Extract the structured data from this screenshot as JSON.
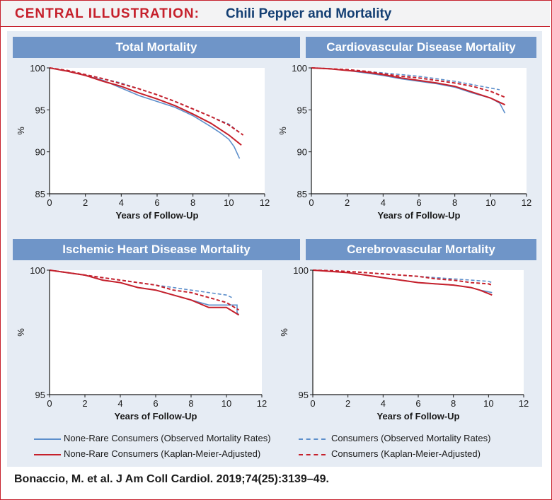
{
  "header": {
    "label": "CENTRAL ILLUSTRATION:",
    "title": "Chili Pepper and Mortality"
  },
  "citation": "Bonaccio, M. et al. J Am Coll Cardiol. 2019;74(25):3139–49.",
  "colors": {
    "red": "#c6202b",
    "blue": "#5d8fcb",
    "title_bar": "#6f95c8",
    "navy": "#143f73"
  },
  "legend": {
    "items": [
      {
        "label": "None-Rare Consumers (Observed Mortality Rates)",
        "color": "#5d8fcb",
        "dash": false
      },
      {
        "label": "Consumers (Observed Mortality Rates)",
        "color": "#5d8fcb",
        "dash": true
      },
      {
        "label": "None-Rare Consumers (Kaplan-Meier-Adjusted)",
        "color": "#c6202b",
        "dash": false
      },
      {
        "label": "Consumers (Kaplan-Meier-Adjusted)",
        "color": "#c6202b",
        "dash": true
      }
    ]
  },
  "chart_data": [
    {
      "type": "line",
      "title": "Total Mortality",
      "xlabel": "Years of Follow-Up",
      "ylabel": "%",
      "xlim": [
        0,
        12
      ],
      "ylim": [
        85,
        100
      ],
      "xticks": [
        0,
        2,
        4,
        6,
        8,
        10,
        12
      ],
      "yticks": [
        85,
        90,
        95,
        100
      ],
      "series": [
        {
          "name": "None-Rare Consumers (Observed Mortality Rates)",
          "x": [
            0,
            1,
            2,
            3,
            4,
            5,
            6,
            7,
            8,
            9,
            9.5,
            10,
            10.3,
            10.6
          ],
          "y": [
            100,
            99.6,
            99.1,
            98.5,
            97.6,
            96.7,
            96,
            95.3,
            94.3,
            93.0,
            92.3,
            91.5,
            90.6,
            89.2
          ]
        },
        {
          "name": "None-Rare Consumers (Kaplan-Meier-Adjusted)",
          "x": [
            0,
            1,
            2,
            3,
            4,
            5,
            6,
            7,
            8,
            9,
            10,
            10.7
          ],
          "y": [
            100,
            99.6,
            99.1,
            98.4,
            97.8,
            97.0,
            96.3,
            95.5,
            94.5,
            93.4,
            92.0,
            90.8
          ]
        },
        {
          "name": "Consumers (Observed Mortality Rates)",
          "x": [
            0,
            1,
            2,
            3,
            4,
            5,
            6,
            7,
            8,
            9,
            10,
            10.6
          ],
          "y": [
            100,
            99.7,
            99.2,
            98.7,
            98.2,
            97.5,
            96.8,
            96.0,
            95.1,
            94.2,
            93.3,
            92.3
          ]
        },
        {
          "name": "Consumers (Kaplan-Meier-Adjusted)",
          "x": [
            0,
            1,
            2,
            3,
            4,
            5,
            6,
            7,
            8,
            9,
            10,
            10.8
          ],
          "y": [
            100,
            99.7,
            99.2,
            98.7,
            98.1,
            97.5,
            96.8,
            96.0,
            95.1,
            94.2,
            93.2,
            92.0
          ]
        }
      ]
    },
    {
      "type": "line",
      "title": "Cardiovascular Disease Mortality",
      "xlabel": "Years of Follow-Up",
      "ylabel": "%",
      "xlim": [
        0,
        12
      ],
      "ylim": [
        85,
        100
      ],
      "xticks": [
        0,
        2,
        4,
        6,
        8,
        10,
        12
      ],
      "yticks": [
        85,
        90,
        95,
        100
      ],
      "series": [
        {
          "name": "None-Rare Consumers (Observed Mortality Rates)",
          "x": [
            0,
            1,
            2,
            3,
            4,
            5,
            6,
            7,
            8,
            9,
            10,
            10.5,
            10.8
          ],
          "y": [
            100,
            99.9,
            99.7,
            99.4,
            99.1,
            98.7,
            98.4,
            98.1,
            97.7,
            97.0,
            96.4,
            95.8,
            94.6
          ]
        },
        {
          "name": "None-Rare Consumers (Kaplan-Meier-Adjusted)",
          "x": [
            0,
            1,
            2,
            3,
            4,
            5,
            6,
            7,
            8,
            9,
            10,
            10.8
          ],
          "y": [
            100,
            99.9,
            99.7,
            99.5,
            99.2,
            98.8,
            98.5,
            98.2,
            97.8,
            97.1,
            96.4,
            95.6
          ]
        },
        {
          "name": "Consumers (Observed Mortality Rates)",
          "x": [
            0,
            1,
            2,
            3,
            4,
            5,
            6,
            7,
            8,
            9,
            10,
            10.5
          ],
          "y": [
            100,
            99.9,
            99.8,
            99.6,
            99.4,
            99.2,
            99.0,
            98.7,
            98.4,
            98.0,
            97.6,
            97.4
          ]
        },
        {
          "name": "Consumers (Kaplan-Meier-Adjusted)",
          "x": [
            0,
            1,
            2,
            3,
            4,
            5,
            6,
            7,
            8,
            9,
            10,
            10.8
          ],
          "y": [
            100,
            99.9,
            99.8,
            99.6,
            99.3,
            99.0,
            98.8,
            98.5,
            98.2,
            97.8,
            97.2,
            96.5
          ]
        }
      ]
    },
    {
      "type": "line",
      "title": "Ischemic Heart Disease Mortality",
      "xlabel": "Years of Follow-Up",
      "ylabel": "%",
      "xlim": [
        0,
        12
      ],
      "ylim": [
        95,
        100
      ],
      "xticks": [
        0,
        2,
        4,
        6,
        8,
        10,
        12
      ],
      "yticks": [
        95,
        100
      ],
      "series": [
        {
          "name": "None-Rare Consumers (Observed Mortality Rates)",
          "x": [
            0,
            1,
            2,
            3,
            4,
            5,
            6,
            7,
            8,
            9,
            10,
            10.6,
            10.6,
            10.7
          ],
          "y": [
            100,
            99.9,
            99.8,
            99.6,
            99.5,
            99.3,
            99.2,
            99.0,
            98.8,
            98.6,
            98.6,
            98.6,
            98.3,
            98.2
          ]
        },
        {
          "name": "None-Rare Consumers (Kaplan-Meier-Adjusted)",
          "x": [
            0,
            1,
            2,
            3,
            4,
            5,
            6,
            7,
            8,
            9,
            10,
            10.7
          ],
          "y": [
            100,
            99.9,
            99.8,
            99.6,
            99.5,
            99.3,
            99.2,
            99.0,
            98.8,
            98.5,
            98.5,
            98.2
          ]
        },
        {
          "name": "Consumers (Observed Mortality Rates)",
          "x": [
            0,
            1,
            2,
            3,
            4,
            5,
            6,
            7,
            8,
            9,
            10,
            10.3
          ],
          "y": [
            100,
            99.9,
            99.8,
            99.7,
            99.6,
            99.5,
            99.4,
            99.3,
            99.2,
            99.1,
            99.0,
            98.9
          ]
        },
        {
          "name": "Consumers (Kaplan-Meier-Adjusted)",
          "x": [
            0,
            1,
            2,
            3,
            4,
            5,
            6,
            7,
            8,
            9,
            10,
            10.7
          ],
          "y": [
            100,
            99.9,
            99.8,
            99.7,
            99.6,
            99.5,
            99.4,
            99.2,
            99.1,
            98.9,
            98.7,
            98.4
          ]
        }
      ]
    },
    {
      "type": "line",
      "title": "Cerebrovascular Mortality",
      "xlabel": "Years of Follow-Up",
      "ylabel": "%",
      "xlim": [
        0,
        12
      ],
      "ylim": [
        95,
        100
      ],
      "xticks": [
        0,
        2,
        4,
        6,
        8,
        10,
        12
      ],
      "yticks": [
        95,
        100
      ],
      "series": [
        {
          "name": "None-Rare Consumers (Observed Mortality Rates)",
          "x": [
            0,
            1,
            2,
            3,
            4,
            5,
            6,
            7,
            8,
            9,
            9.5,
            10.2
          ],
          "y": [
            100,
            99.95,
            99.9,
            99.8,
            99.7,
            99.6,
            99.5,
            99.45,
            99.4,
            99.3,
            99.2,
            99.1
          ]
        },
        {
          "name": "None-Rare Consumers (Kaplan-Meier-Adjusted)",
          "x": [
            0,
            1,
            2,
            3,
            4,
            5,
            6,
            7,
            8,
            9,
            9.5,
            10.2
          ],
          "y": [
            100,
            99.95,
            99.9,
            99.8,
            99.7,
            99.6,
            99.5,
            99.45,
            99.4,
            99.3,
            99.2,
            99.0
          ]
        },
        {
          "name": "Consumers (Observed Mortality Rates)",
          "x": [
            0,
            1,
            2,
            3,
            4,
            5,
            6,
            7,
            8,
            9,
            10,
            10.2
          ],
          "y": [
            100,
            99.98,
            99.95,
            99.9,
            99.85,
            99.8,
            99.75,
            99.7,
            99.65,
            99.6,
            99.55,
            99.5
          ]
        },
        {
          "name": "Consumers (Kaplan-Meier-Adjusted)",
          "x": [
            0,
            1,
            2,
            3,
            4,
            5,
            6,
            7,
            8,
            9,
            10,
            10.2
          ],
          "y": [
            100,
            99.98,
            99.95,
            99.9,
            99.85,
            99.8,
            99.75,
            99.65,
            99.6,
            99.5,
            99.45,
            99.4
          ]
        }
      ]
    }
  ]
}
